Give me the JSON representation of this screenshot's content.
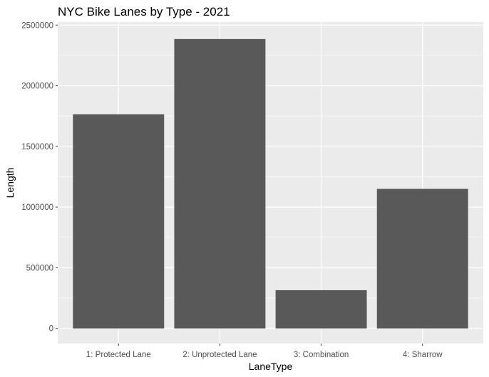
{
  "chart_data": {
    "type": "bar",
    "title": "NYC Bike Lanes by Type - 2021",
    "xlabel": "LaneType",
    "ylabel": "Length",
    "categories": [
      "1: Protected Lane",
      "2: Unprotected Lane",
      "3: Combination",
      "4: Sharrow"
    ],
    "values": [
      1765000,
      2385000,
      315000,
      1150000
    ],
    "ylim": [
      -125000,
      2525000
    ],
    "yticks": [
      0,
      500000,
      1000000,
      1500000,
      2000000,
      2500000
    ],
    "ytick_labels": [
      "0",
      "500000",
      "1000000",
      "1500000",
      "2000000",
      "2500000"
    ],
    "grid": true,
    "legend": "none",
    "colors": {
      "bar": "#595959",
      "panel": "#ebebeb",
      "grid_major": "#ffffff",
      "tick_text": "#4d4d4d"
    }
  }
}
